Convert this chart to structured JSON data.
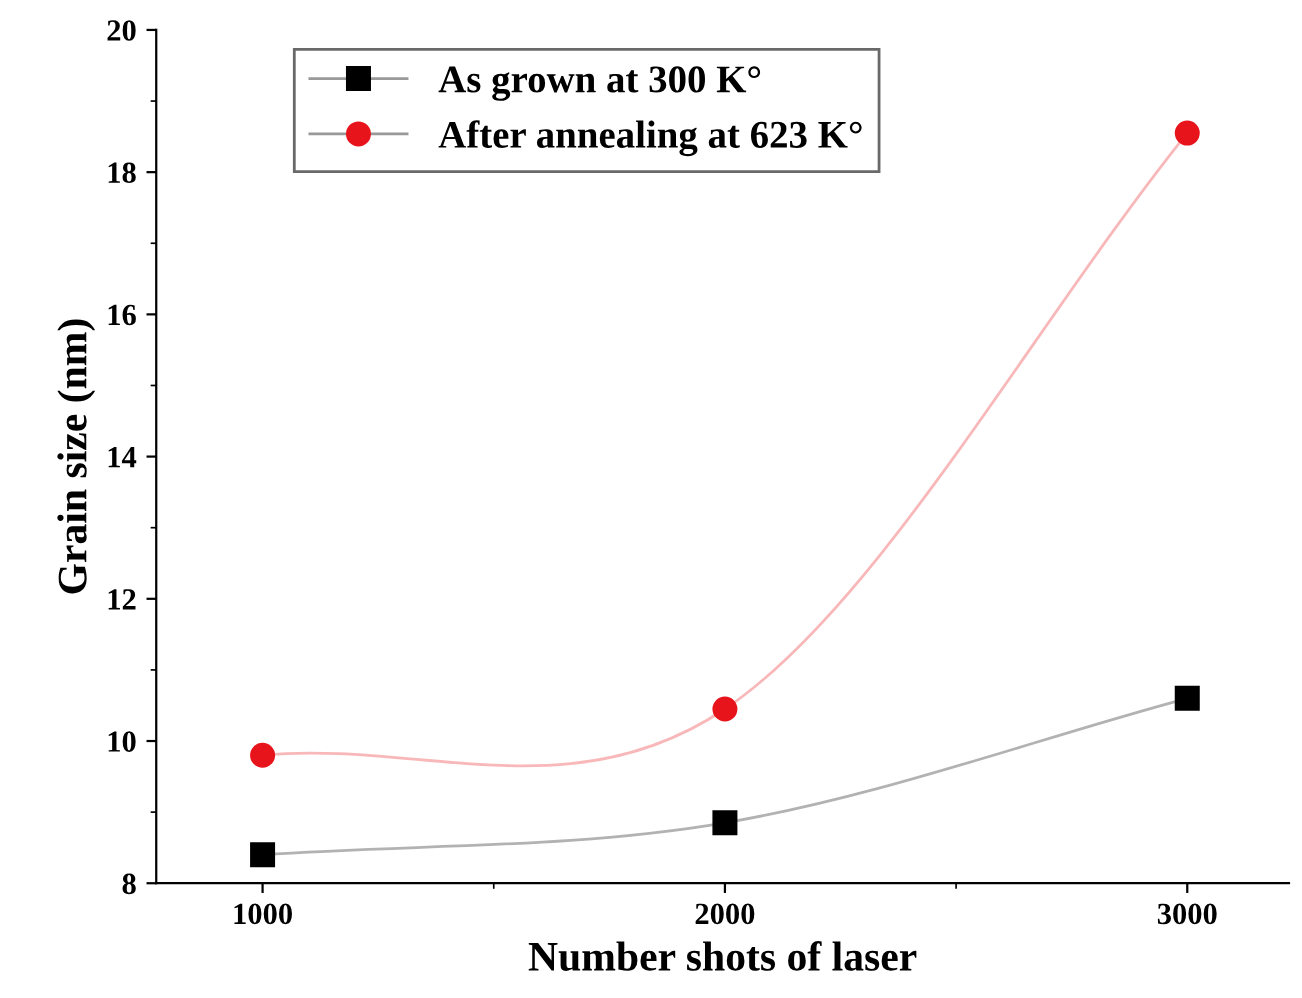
{
  "chart_data": {
    "type": "line",
    "xlabel": "Number shots of laser",
    "ylabel": "Grain size (nm)",
    "x": [
      1000,
      2000,
      3000
    ],
    "series": [
      {
        "name": "As grown at 300 K°",
        "color": "#000000",
        "marker": "square",
        "values": [
          8.4,
          8.85,
          10.6
        ]
      },
      {
        "name": "After annealing at 623 K°",
        "color": "#e8141c",
        "marker": "circle",
        "values": [
          9.8,
          10.45,
          18.55
        ]
      }
    ],
    "xlim": [
      770,
      3220
    ],
    "xticks": [
      1000,
      2000,
      3000
    ],
    "ylim": [
      8,
      20
    ],
    "yticks": [
      8,
      10,
      12,
      14,
      16,
      18,
      20
    ],
    "grid": false,
    "legend": "top",
    "line_style": "solid"
  }
}
